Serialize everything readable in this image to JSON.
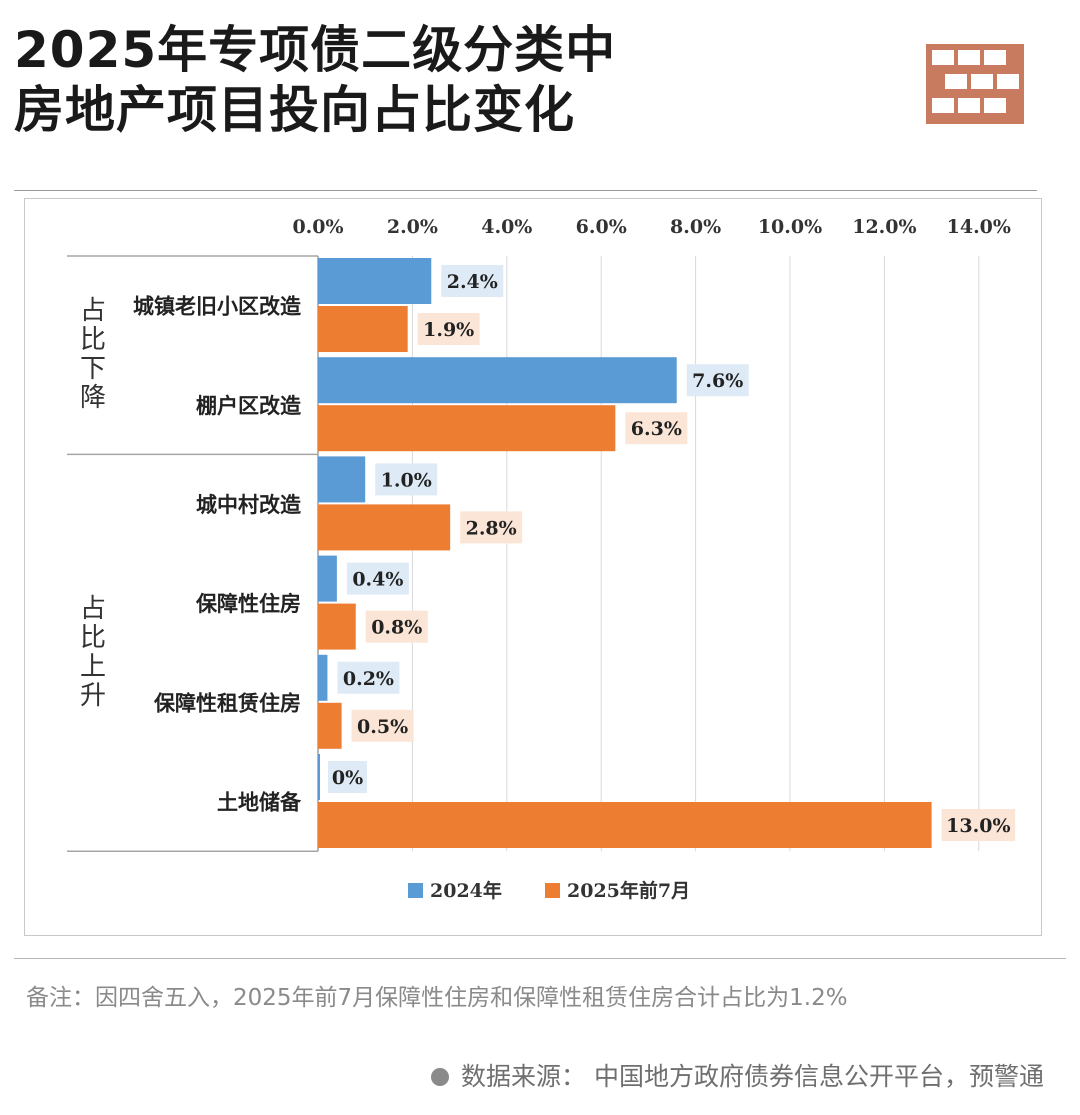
{
  "header": {
    "title_line1": "2025年专项债二级分类中",
    "title_line2": "房地产项目投向占比变化",
    "logo_icon": "brick-wall-icon",
    "logo_color": "#c97b5f"
  },
  "chart_data": {
    "type": "bar",
    "orientation": "horizontal",
    "x_ticks": [
      "0.0%",
      "2.0%",
      "4.0%",
      "6.0%",
      "8.0%",
      "10.0%",
      "12.0%",
      "14.0%"
    ],
    "xlim": [
      0,
      14
    ],
    "x_axis_position": "top",
    "grid": true,
    "categories": [
      "城镇老旧小区改造",
      "棚户区改造",
      "城中村改造",
      "保障性住房",
      "保障性租赁住房",
      "土地储备"
    ],
    "groups": [
      {
        "label_chars": [
          "占",
          "比",
          "下",
          "降"
        ],
        "start": 0,
        "end": 1
      },
      {
        "label_chars": [
          "占",
          "比",
          "上",
          "升"
        ],
        "start": 2,
        "end": 5
      }
    ],
    "series": [
      {
        "name": "2024年",
        "color": "#5b9bd5",
        "label_bg": "#deebf7",
        "values": [
          2.4,
          7.6,
          1.0,
          0.4,
          0.2,
          0
        ],
        "labels": [
          "2.4%",
          "7.6%",
          "1.0%",
          "0.4%",
          "0.2%",
          "0%"
        ]
      },
      {
        "name": "2025年前7月",
        "color": "#ed7d31",
        "label_bg": "#fbe5d6",
        "values": [
          1.9,
          6.3,
          2.8,
          0.8,
          0.5,
          13.0
        ],
        "labels": [
          "1.9%",
          "6.3%",
          "2.8%",
          "0.8%",
          "0.5%",
          "13.0%"
        ]
      }
    ],
    "legend_position": "bottom-center"
  },
  "footer": {
    "note": "备注：因四舍五入，2025年前7月保障性住房和保障性租赁住房合计占比为1.2%",
    "source": "数据来源：  中国地方政府债券信息公开平台，预警通"
  }
}
